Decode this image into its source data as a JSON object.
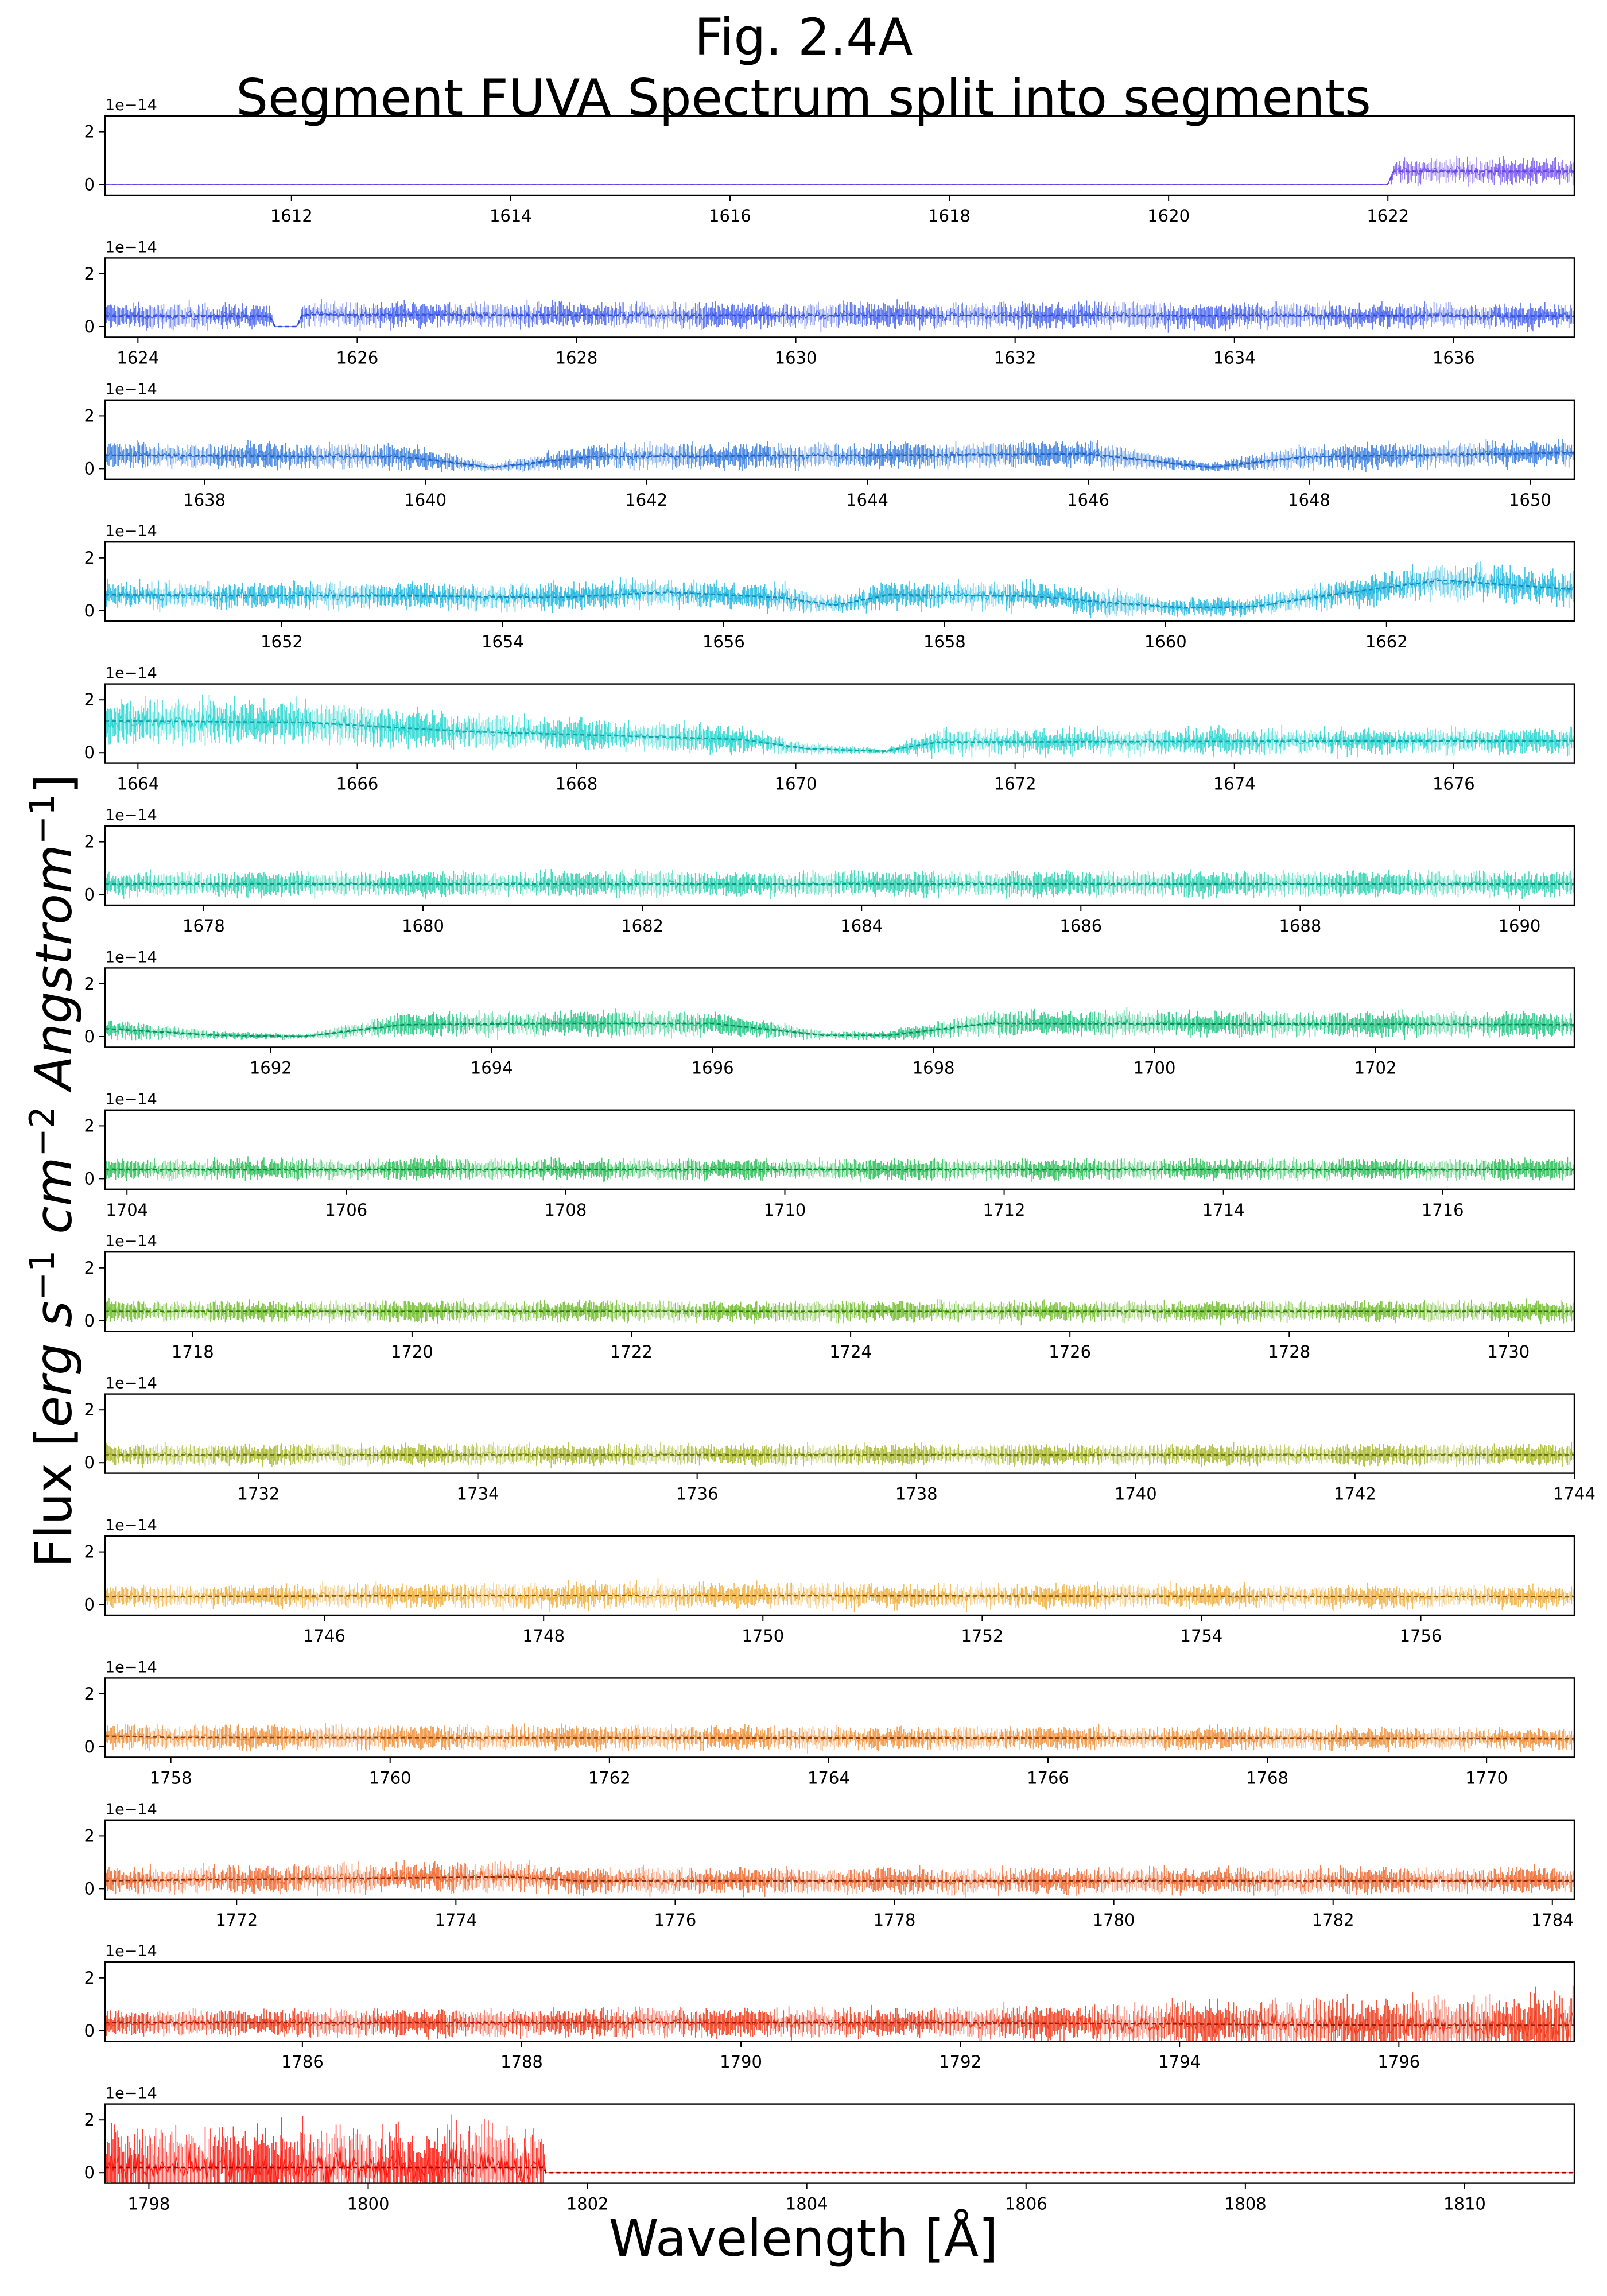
{
  "title": {
    "line1": "Fig. 2.4A",
    "line2": "Segment FUVA Spectrum split into segments"
  },
  "axes": {
    "xlabel": "Wavelength [Å]",
    "ylabel_prefix": "Flux [",
    "ylabel_units": [
      "erg",
      "s",
      "cm",
      "Angstrom"
    ],
    "ylabel_exponents": [
      "−1",
      "−2",
      "−1"
    ],
    "ylabel_suffix": "]"
  },
  "chart_data": {
    "type": "line",
    "ylim": [
      -0.4,
      2.6
    ],
    "yticks": [
      0,
      2
    ],
    "y_offset_label": "1e−14",
    "grid": false,
    "panels": [
      {
        "xlim": [
          1610.3,
          1623.7
        ],
        "xticks": [
          1612,
          1614,
          1616,
          1618,
          1620,
          1622
        ],
        "color": "#6a3ee8",
        "errcolor": "#7a5cf0",
        "profile": [
          [
            1610.3,
            0,
            0,
            0
          ],
          [
            1622.0,
            0,
            0,
            0
          ],
          [
            1622.05,
            0.5,
            0.28,
            0.3
          ],
          [
            1623.7,
            0.5,
            0.28,
            0.3
          ]
        ]
      },
      {
        "xlim": [
          1623.7,
          1637.1
        ],
        "xticks": [
          1624,
          1626,
          1628,
          1630,
          1632,
          1634,
          1636
        ],
        "color": "#2f48d9",
        "errcolor": "#4a66ee",
        "profile": [
          [
            1623.7,
            0.4,
            0.28,
            0.3
          ],
          [
            1625.2,
            0.4,
            0.28,
            0.3
          ],
          [
            1625.25,
            0,
            0,
            0
          ],
          [
            1625.45,
            0,
            0,
            0
          ],
          [
            1625.5,
            0.45,
            0.3,
            0.3
          ],
          [
            1637.1,
            0.4,
            0.25,
            0.3
          ]
        ]
      },
      {
        "xlim": [
          1637.1,
          1650.4
        ],
        "xticks": [
          1638,
          1640,
          1642,
          1644,
          1646,
          1648,
          1650
        ],
        "color": "#1f62c7",
        "errcolor": "#3a7ede",
        "profile": [
          [
            1637.1,
            0.5,
            0.25,
            0.3
          ],
          [
            1639.8,
            0.45,
            0.25,
            0.3
          ],
          [
            1640.6,
            0.05,
            0.05,
            0.1
          ],
          [
            1641.5,
            0.45,
            0.25,
            0.3
          ],
          [
            1646.0,
            0.55,
            0.25,
            0.3
          ],
          [
            1647.1,
            0.05,
            0.05,
            0.1
          ],
          [
            1648.0,
            0.45,
            0.25,
            0.3
          ],
          [
            1650.4,
            0.6,
            0.25,
            0.3
          ]
        ]
      },
      {
        "xlim": [
          1650.4,
          1663.7
        ],
        "xticks": [
          1652,
          1654,
          1656,
          1658,
          1660,
          1662
        ],
        "color": "#1888bf",
        "errcolor": "#22b8df",
        "profile": [
          [
            1650.4,
            0.6,
            0.35,
            0.3
          ],
          [
            1653.5,
            0.55,
            0.35,
            0.3
          ],
          [
            1654.5,
            0.5,
            0.35,
            0.3
          ],
          [
            1655.5,
            0.7,
            0.35,
            0.3
          ],
          [
            1656.5,
            0.5,
            0.35,
            0.3
          ],
          [
            1657.0,
            0.2,
            0.25,
            0.2
          ],
          [
            1657.5,
            0.6,
            0.35,
            0.3
          ],
          [
            1658.8,
            0.55,
            0.35,
            0.3
          ],
          [
            1659.5,
            0.3,
            0.3,
            0.3
          ],
          [
            1660.2,
            0.1,
            0.25,
            0.2
          ],
          [
            1660.8,
            0.15,
            0.25,
            0.2
          ],
          [
            1661.5,
            0.6,
            0.4,
            0.3
          ],
          [
            1662.5,
            1.15,
            0.45,
            0.4
          ],
          [
            1663.7,
            0.8,
            0.4,
            0.4
          ]
        ]
      },
      {
        "xlim": [
          1663.7,
          1677.1
        ],
        "xticks": [
          1664,
          1666,
          1668,
          1670,
          1672,
          1674,
          1676
        ],
        "color": "#15a3a8",
        "errcolor": "#2ad6d0",
        "profile": [
          [
            1663.7,
            1.2,
            0.45,
            0.5
          ],
          [
            1665.5,
            1.15,
            0.45,
            0.5
          ],
          [
            1667.0,
            0.8,
            0.35,
            0.4
          ],
          [
            1669.5,
            0.5,
            0.3,
            0.3
          ],
          [
            1670.1,
            0.15,
            0.1,
            0.15
          ],
          [
            1670.8,
            0.05,
            0.05,
            0.05
          ],
          [
            1671.3,
            0.4,
            0.3,
            0.3
          ],
          [
            1677.1,
            0.45,
            0.3,
            0.3
          ]
        ]
      },
      {
        "xlim": [
          1677.1,
          1690.5
        ],
        "xticks": [
          1678,
          1680,
          1682,
          1684,
          1686,
          1688,
          1690
        ],
        "color": "#129a86",
        "errcolor": "#2cd1b1",
        "profile": [
          [
            1677.1,
            0.4,
            0.22,
            0.3
          ],
          [
            1690.5,
            0.4,
            0.22,
            0.3
          ]
        ]
      },
      {
        "xlim": [
          1690.5,
          1703.8
        ],
        "xticks": [
          1692,
          1694,
          1696,
          1698,
          1700,
          1702
        ],
        "color": "#0e8a60",
        "errcolor": "#21c784",
        "profile": [
          [
            1690.5,
            0.3,
            0.18,
            0.25
          ],
          [
            1691.5,
            0.05,
            0.08,
            0.1
          ],
          [
            1692.3,
            0.0,
            0.05,
            0.05
          ],
          [
            1693.2,
            0.45,
            0.2,
            0.3
          ],
          [
            1694.5,
            0.5,
            0.22,
            0.3
          ],
          [
            1696.0,
            0.5,
            0.22,
            0.3
          ],
          [
            1697.0,
            0.05,
            0.06,
            0.1
          ],
          [
            1697.6,
            0.05,
            0.06,
            0.1
          ],
          [
            1698.5,
            0.5,
            0.22,
            0.3
          ],
          [
            1703.8,
            0.45,
            0.2,
            0.3
          ]
        ]
      },
      {
        "xlim": [
          1703.8,
          1717.2
        ],
        "xticks": [
          1704,
          1706,
          1708,
          1710,
          1712,
          1714,
          1716
        ],
        "color": "#0a7d3a",
        "errcolor": "#2bbd57",
        "profile": [
          [
            1703.8,
            0.35,
            0.18,
            0.25
          ],
          [
            1717.2,
            0.35,
            0.18,
            0.25
          ]
        ]
      },
      {
        "xlim": [
          1717.2,
          1730.6
        ],
        "xticks": [
          1718,
          1720,
          1722,
          1724,
          1726,
          1728,
          1730
        ],
        "color": "#2f7a14",
        "errcolor": "#6fbd2a",
        "profile": [
          [
            1717.2,
            0.35,
            0.18,
            0.25
          ],
          [
            1730.6,
            0.35,
            0.18,
            0.25
          ]
        ]
      },
      {
        "xlim": [
          1730.6,
          1744.0
        ],
        "xticks": [
          1732,
          1734,
          1736,
          1738,
          1740,
          1742,
          1744
        ],
        "color": "#5a6a0f",
        "errcolor": "#aab82a",
        "profile": [
          [
            1730.6,
            0.3,
            0.18,
            0.25
          ],
          [
            1744.0,
            0.3,
            0.18,
            0.25
          ]
        ]
      },
      {
        "xlim": [
          1744.0,
          1757.4
        ],
        "xticks": [
          1746,
          1748,
          1750,
          1752,
          1754,
          1756
        ],
        "color": "#7a5810",
        "errcolor": "#f0b040",
        "profile": [
          [
            1744.0,
            0.3,
            0.2,
            0.25
          ],
          [
            1747.5,
            0.35,
            0.3,
            0.3
          ],
          [
            1748.5,
            0.35,
            0.3,
            0.3
          ],
          [
            1757.4,
            0.3,
            0.2,
            0.25
          ]
        ]
      },
      {
        "xlim": [
          1757.4,
          1770.8
        ],
        "xticks": [
          1758,
          1760,
          1762,
          1764,
          1766,
          1768,
          1770
        ],
        "color": "#8a4010",
        "errcolor": "#f0903a",
        "profile": [
          [
            1757.4,
            0.4,
            0.25,
            0.3
          ],
          [
            1758.0,
            0.35,
            0.22,
            0.3
          ],
          [
            1770.8,
            0.3,
            0.22,
            0.25
          ]
        ]
      },
      {
        "xlim": [
          1770.8,
          1784.2
        ],
        "xticks": [
          1772,
          1774,
          1776,
          1778,
          1780,
          1782,
          1784
        ],
        "color": "#8a2a10",
        "errcolor": "#f06a30",
        "profile": [
          [
            1770.8,
            0.3,
            0.25,
            0.3
          ],
          [
            1774.5,
            0.45,
            0.35,
            0.35
          ],
          [
            1775.1,
            0.3,
            0.3,
            0.3
          ],
          [
            1784.2,
            0.3,
            0.25,
            0.3
          ]
        ]
      },
      {
        "xlim": [
          1784.2,
          1797.6
        ],
        "xticks": [
          1786,
          1788,
          1790,
          1792,
          1794,
          1796
        ],
        "color": "#9a1a0a",
        "errcolor": "#f03a1a",
        "profile": [
          [
            1784.2,
            0.3,
            0.25,
            0.3
          ],
          [
            1792.0,
            0.3,
            0.3,
            0.35
          ],
          [
            1794.0,
            0.25,
            0.45,
            0.5
          ],
          [
            1796.0,
            0.2,
            0.6,
            0.6
          ],
          [
            1797.6,
            0.2,
            0.9,
            0.8
          ]
        ]
      },
      {
        "xlim": [
          1797.6,
          1811.0
        ],
        "xticks": [
          1798,
          1800,
          1802,
          1804,
          1806,
          1808,
          1810
        ],
        "color": "#9a0000",
        "errcolor": "#ff1a10",
        "profile": [
          [
            1797.6,
            0.2,
            1.0,
            0.9
          ],
          [
            1801.6,
            0.2,
            1.1,
            0.9
          ],
          [
            1801.62,
            0,
            0,
            0
          ],
          [
            1811.0,
            0,
            0,
            0
          ]
        ]
      }
    ]
  }
}
